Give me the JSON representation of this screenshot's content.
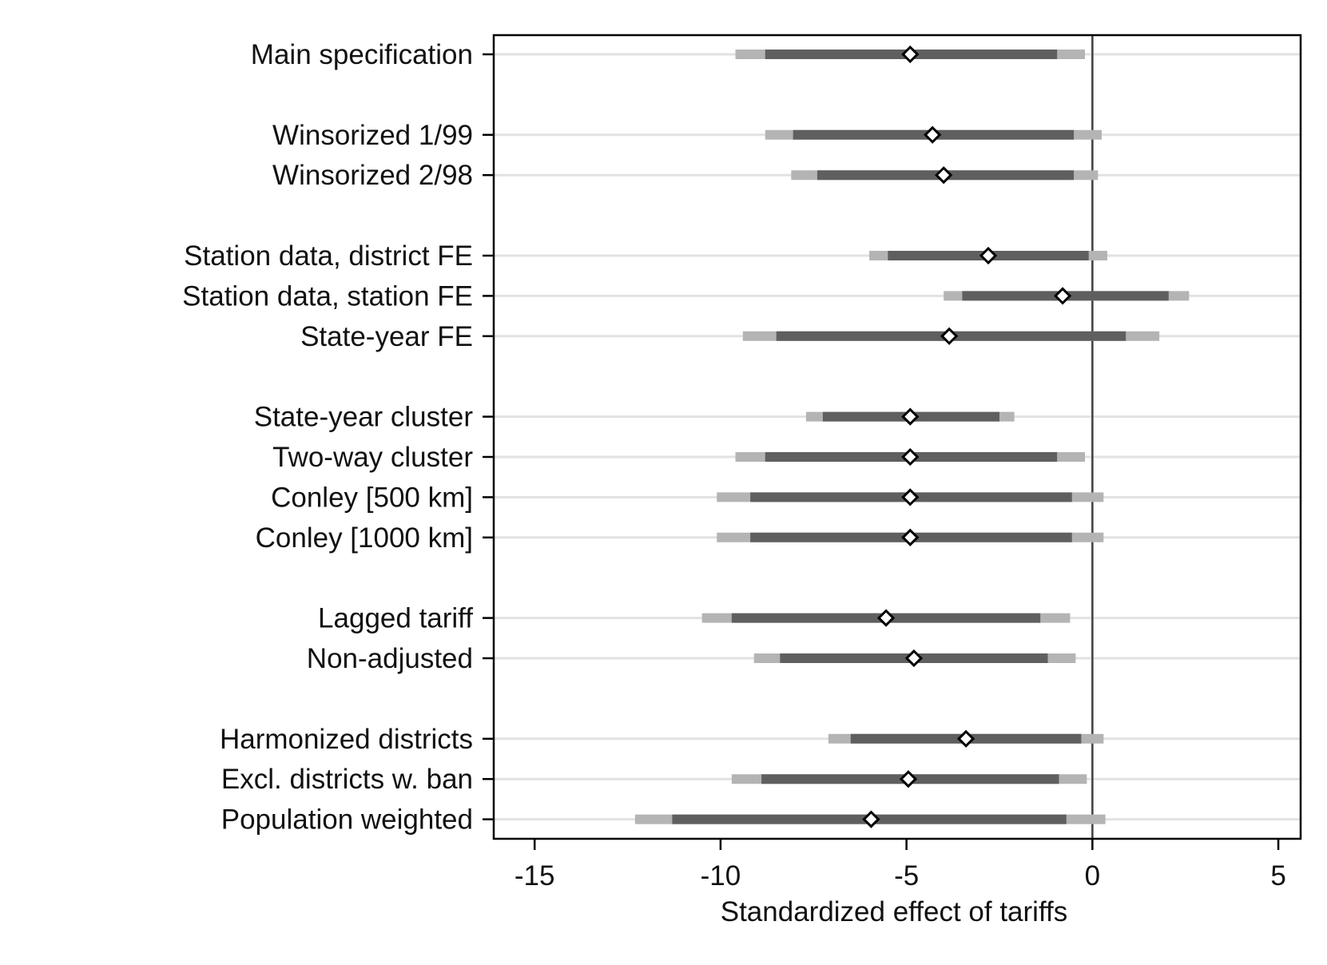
{
  "chart_data": {
    "type": "coefficient-plot",
    "title": "",
    "xlabel": "Standardized effect of tariffs",
    "ylabel": "",
    "xlim": [
      -16.1,
      5.6
    ],
    "xticks": [
      -15,
      -10,
      -5,
      0,
      5
    ],
    "xtick_labels": [
      "-15",
      "-10",
      "-5",
      "0",
      "5"
    ],
    "reference_line": 0,
    "grid": "horizontal lines at each specification",
    "colors": {
      "inner_ci": "#5f5f5f",
      "outer_ci": "#b4b4b4",
      "marker_fill": "#ffffff",
      "marker_stroke": "#000000",
      "gridline": "#e2e2e2",
      "axis": "#000000",
      "zero_line": "#444444"
    },
    "rows": [
      {
        "label": "Main specification",
        "slot": 0,
        "estimate": -4.9,
        "ci_inner": [
          -8.8,
          -0.95
        ],
        "ci_outer": [
          -9.6,
          -0.2
        ]
      },
      {
        "label": "Winsorized 1/99",
        "slot": 2,
        "estimate": -4.3,
        "ci_inner": [
          -8.05,
          -0.5
        ],
        "ci_outer": [
          -8.8,
          0.25
        ]
      },
      {
        "label": "Winsorized 2/98",
        "slot": 3,
        "estimate": -4.0,
        "ci_inner": [
          -7.4,
          -0.5
        ],
        "ci_outer": [
          -8.1,
          0.15
        ]
      },
      {
        "label": "Station data, district FE",
        "slot": 5,
        "estimate": -2.8,
        "ci_inner": [
          -5.5,
          -0.1
        ],
        "ci_outer": [
          -6.0,
          0.4
        ]
      },
      {
        "label": "Station data, station FE",
        "slot": 6,
        "estimate": -0.8,
        "ci_inner": [
          -3.5,
          2.05
        ],
        "ci_outer": [
          -4.0,
          2.6
        ]
      },
      {
        "label": "State-year FE",
        "slot": 7,
        "estimate": -3.85,
        "ci_inner": [
          -8.5,
          0.9
        ],
        "ci_outer": [
          -9.4,
          1.8
        ]
      },
      {
        "label": "State-year cluster",
        "slot": 9,
        "estimate": -4.9,
        "ci_inner": [
          -7.25,
          -2.5
        ],
        "ci_outer": [
          -7.7,
          -2.1
        ]
      },
      {
        "label": "Two-way cluster",
        "slot": 10,
        "estimate": -4.9,
        "ci_inner": [
          -8.8,
          -0.95
        ],
        "ci_outer": [
          -9.6,
          -0.2
        ]
      },
      {
        "label": "Conley [500 km]",
        "slot": 11,
        "estimate": -4.9,
        "ci_inner": [
          -9.2,
          -0.55
        ],
        "ci_outer": [
          -10.1,
          0.3
        ]
      },
      {
        "label": "Conley [1000 km]",
        "slot": 12,
        "estimate": -4.9,
        "ci_inner": [
          -9.2,
          -0.55
        ],
        "ci_outer": [
          -10.1,
          0.3
        ]
      },
      {
        "label": "Lagged tariff",
        "slot": 14,
        "estimate": -5.55,
        "ci_inner": [
          -9.7,
          -1.4
        ],
        "ci_outer": [
          -10.5,
          -0.6
        ]
      },
      {
        "label": "Non-adjusted",
        "slot": 15,
        "estimate": -4.8,
        "ci_inner": [
          -8.4,
          -1.2
        ],
        "ci_outer": [
          -9.1,
          -0.45
        ]
      },
      {
        "label": "Harmonized districts",
        "slot": 17,
        "estimate": -3.4,
        "ci_inner": [
          -6.5,
          -0.3
        ],
        "ci_outer": [
          -7.1,
          0.3
        ]
      },
      {
        "label": "Excl. districts w. ban",
        "slot": 18,
        "estimate": -4.95,
        "ci_inner": [
          -8.9,
          -0.9
        ],
        "ci_outer": [
          -9.7,
          -0.15
        ]
      },
      {
        "label": "Population weighted",
        "slot": 19,
        "estimate": -5.95,
        "ci_inner": [
          -11.3,
          -0.7
        ],
        "ci_outer": [
          -12.3,
          0.35
        ]
      }
    ]
  }
}
